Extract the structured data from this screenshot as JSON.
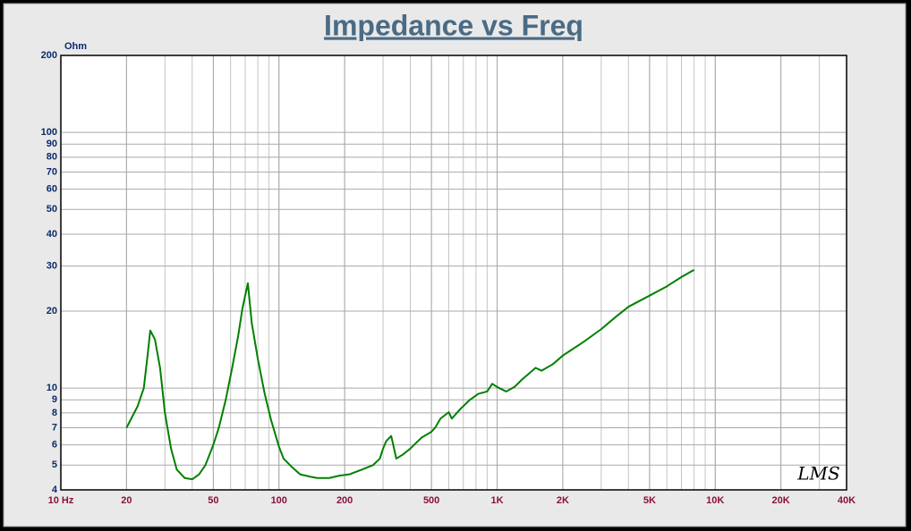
{
  "chart_data": {
    "type": "line",
    "title": "Impedance vs Freq",
    "y_label": "Ohm",
    "logo": "LMS",
    "x": [
      20,
      22.5,
      24,
      25,
      25.7,
      27,
      28.5,
      30,
      32,
      34,
      37,
      40,
      43,
      46,
      50,
      53,
      57,
      61,
      65,
      68,
      72,
      75,
      80,
      86,
      92,
      100,
      105,
      115,
      125,
      140,
      150,
      170,
      190,
      210,
      240,
      270,
      290,
      300,
      310,
      327,
      345,
      370,
      400,
      450,
      500,
      520,
      550,
      600,
      620,
      680,
      750,
      820,
      900,
      950,
      1000,
      1100,
      1200,
      1300,
      1400,
      1500,
      1600,
      1800,
      2000,
      2500,
      3000,
      3500,
      4000,
      5000,
      6000,
      7000,
      8000
    ],
    "values": [
      7,
      8.5,
      10,
      13.5,
      16.8,
      15.5,
      12,
      8,
      5.8,
      4.8,
      4.45,
      4.4,
      4.6,
      5,
      6,
      7,
      9,
      12,
      16,
      20.5,
      25.7,
      18,
      13,
      9.5,
      7.5,
      5.9,
      5.3,
      4.9,
      4.6,
      4.5,
      4.45,
      4.45,
      4.55,
      4.6,
      4.8,
      5,
      5.3,
      5.8,
      6.2,
      6.5,
      5.3,
      5.5,
      5.8,
      6.4,
      6.75,
      7,
      7.6,
      8.05,
      7.6,
      8.3,
      9,
      9.5,
      9.7,
      10.4,
      10.1,
      9.7,
      10.1,
      10.8,
      11.4,
      12,
      11.7,
      12.4,
      13.4,
      15.2,
      17,
      19,
      20.8,
      23,
      25,
      27.2,
      29
    ],
    "color": "#008000",
    "log_x": true,
    "log_y": true,
    "grid": true,
    "xlim": [
      10,
      40000
    ],
    "xticks": [
      {
        "value": 10,
        "label": "10 Hz"
      },
      20,
      50,
      100,
      200,
      500,
      {
        "value": 1000,
        "label": "1K"
      },
      {
        "value": 2000,
        "label": "2K"
      },
      {
        "value": 5000,
        "label": "5K"
      },
      {
        "value": 10000,
        "label": "10K"
      },
      {
        "value": 20000,
        "label": "20K"
      },
      {
        "value": 40000,
        "label": "40K"
      }
    ],
    "ylim": [
      4,
      200
    ],
    "yticks": [
      4,
      5,
      6,
      7,
      8,
      9,
      10,
      20,
      30,
      40,
      50,
      60,
      70,
      80,
      90,
      100,
      200
    ]
  }
}
